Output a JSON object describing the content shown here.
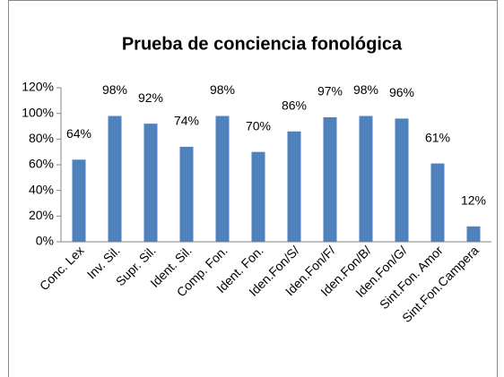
{
  "chart_data": {
    "type": "bar",
    "title": "Prueba de conciencia fonológica",
    "categories": [
      "Conc. Lex",
      "Inv. Sil.",
      "Supr. Sil.",
      "Ident. Sil.",
      "Comp. Fon.",
      "Ident. Fon.",
      "Iden.Fon/S/",
      "Iden.Fon/F/",
      "Iden.Fon/B/",
      "Iden.Fon/G/",
      "Sint.Fon. Amor",
      "Sint.Fon.Campera"
    ],
    "values": [
      64,
      98,
      92,
      74,
      98,
      70,
      86,
      97,
      98,
      96,
      61,
      12
    ],
    "value_labels": [
      "64%",
      "98%",
      "92%",
      "74%",
      "98%",
      "70%",
      "86%",
      "97%",
      "98%",
      "96%",
      "61%",
      "12%"
    ],
    "color": "#4f81bd",
    "ylim": [
      0,
      120
    ],
    "yticks": [
      {
        "value": 0,
        "label": "0%"
      },
      {
        "value": 20,
        "label": "20%"
      },
      {
        "value": 40,
        "label": "40%"
      },
      {
        "value": 60,
        "label": "60%"
      },
      {
        "value": 80,
        "label": "80%"
      },
      {
        "value": 100,
        "label": "100%"
      },
      {
        "value": 120,
        "label": "120%"
      }
    ],
    "grid": false
  }
}
